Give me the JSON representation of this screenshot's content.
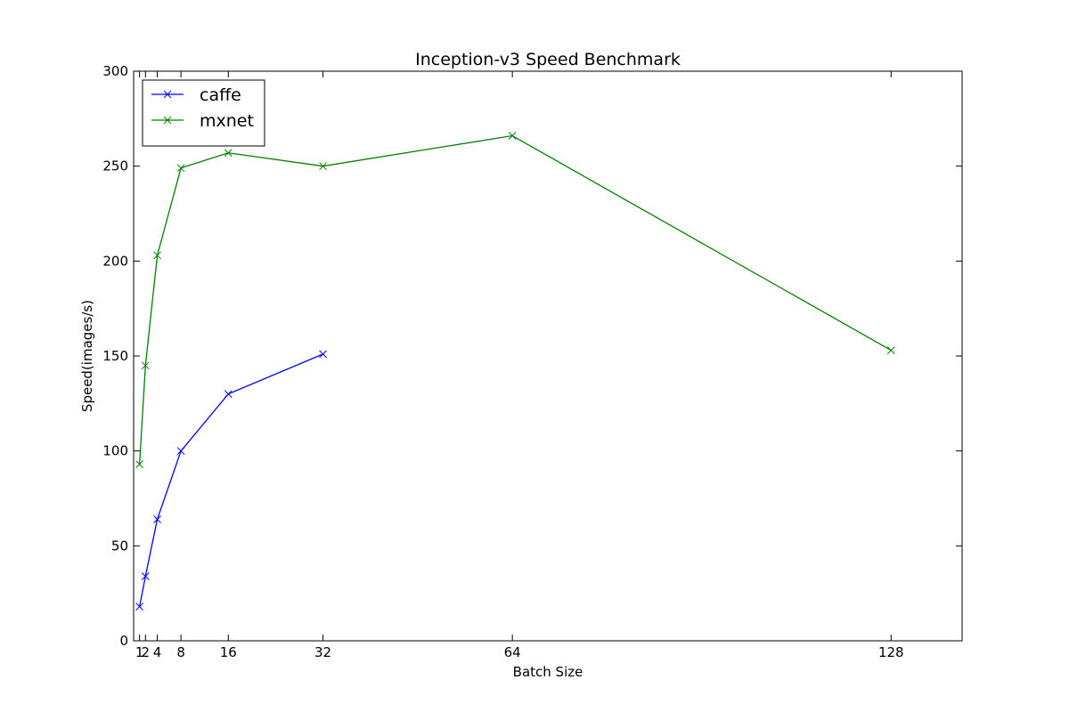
{
  "chart_data": {
    "type": "line",
    "title": "Inception-v3 Speed Benchmark",
    "xlabel": "Batch Size",
    "ylabel": "Speed(images/s)",
    "xlim": [
      0,
      140
    ],
    "ylim": [
      0,
      300
    ],
    "xticks": [
      1,
      2,
      4,
      8,
      16,
      32,
      64,
      128
    ],
    "xtick_labels": [
      "1",
      "2",
      "4",
      "8",
      "16",
      "32",
      "64",
      "128"
    ],
    "yticks": [
      0,
      50,
      100,
      150,
      200,
      250,
      300
    ],
    "ytick_labels": [
      "0",
      "50",
      "100",
      "150",
      "200",
      "250",
      "300"
    ],
    "grid": false,
    "legend_position": "top-left",
    "marker": "x",
    "series": [
      {
        "name": "caffe",
        "color": "#0000ff",
        "x": [
          1,
          2,
          4,
          8,
          16,
          32
        ],
        "y": [
          18,
          34,
          64,
          100,
          130,
          151
        ]
      },
      {
        "name": "mxnet",
        "color": "#008000",
        "x": [
          1,
          2,
          4,
          8,
          16,
          32,
          64,
          128
        ],
        "y": [
          93,
          145,
          203,
          249,
          257,
          250,
          266,
          153
        ]
      }
    ]
  }
}
